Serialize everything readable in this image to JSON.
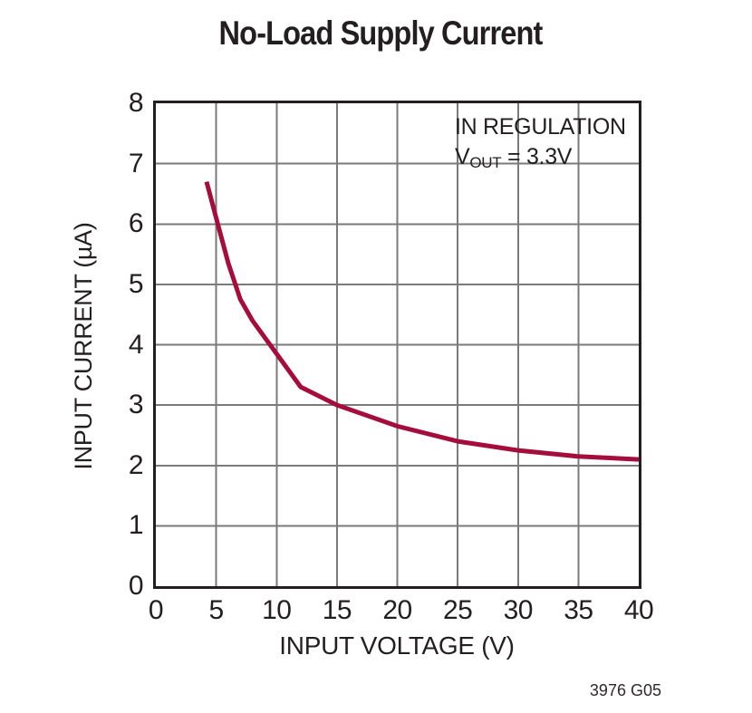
{
  "figure": {
    "caption": "3976 G05",
    "annotation": {
      "line1": "IN REGULATION",
      "v_prefix": "V",
      "v_sub": "OUT",
      "v_suffix": " = 3.3V"
    },
    "colors": {
      "curve": "#a50d3d",
      "grid": "#7a7a7a",
      "frame": "#231f20",
      "text": "#231f20"
    }
  },
  "chart_data": {
    "type": "line",
    "title": "No-Load Supply Current",
    "xlabel": "INPUT VOLTAGE (V)",
    "ylabel": "INPUT CURRENT (µA)",
    "xlim": [
      0,
      40
    ],
    "ylim": [
      0,
      8
    ],
    "xticks": [
      0,
      5,
      10,
      15,
      20,
      25,
      30,
      35,
      40
    ],
    "yticks": [
      0,
      1,
      2,
      3,
      4,
      5,
      6,
      7,
      8
    ],
    "grid": true,
    "legend": false,
    "annotations": [
      "IN REGULATION",
      "VOUT = 3.3V"
    ],
    "series": [
      {
        "name": "no-load-supply-current",
        "color": "#a50d3d",
        "x": [
          4.2,
          5,
          6,
          7,
          8,
          10,
          12,
          15,
          20,
          25,
          30,
          35,
          40
        ],
        "y": [
          6.7,
          6.1,
          5.35,
          4.75,
          4.4,
          3.85,
          3.3,
          3.0,
          2.65,
          2.4,
          2.25,
          2.15,
          2.1
        ]
      }
    ]
  }
}
